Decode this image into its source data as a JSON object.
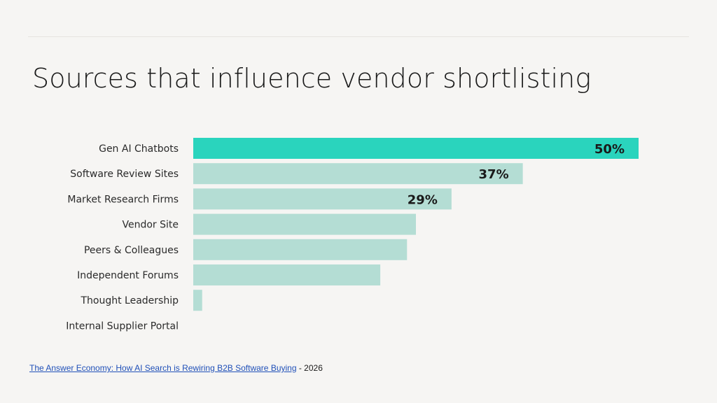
{
  "slide": {
    "title": "Sources that influence vendor shortlisting"
  },
  "source": {
    "link_text": "The Answer Economy: How AI Search is Rewiring B2B Software Buying",
    "suffix": " - 2026"
  },
  "colors": {
    "highlight_bar": "#2ad4bd",
    "bar": "#b4ddd4",
    "background": "#f6f5f3",
    "link": "#2050b8"
  },
  "chart_data": {
    "type": "bar",
    "orientation": "horizontal",
    "title": "Sources that influence vendor shortlisting",
    "categories": [
      "Gen AI Chatbots",
      "Software Review Sites",
      "Market Research Firms",
      "Vendor Site",
      "Peers & Colleagues",
      "Independent Forums",
      "Thought Leadership",
      "Internal Supplier Portal"
    ],
    "values": [
      50,
      37,
      29,
      25,
      24,
      21,
      1,
      0
    ],
    "unit": "%",
    "data_labels": [
      "50%",
      "37%",
      "29%",
      "",
      "",
      "",
      "",
      ""
    ],
    "highlight_index": 0,
    "xlim": [
      0,
      50
    ],
    "grid": false,
    "legend": "none"
  }
}
